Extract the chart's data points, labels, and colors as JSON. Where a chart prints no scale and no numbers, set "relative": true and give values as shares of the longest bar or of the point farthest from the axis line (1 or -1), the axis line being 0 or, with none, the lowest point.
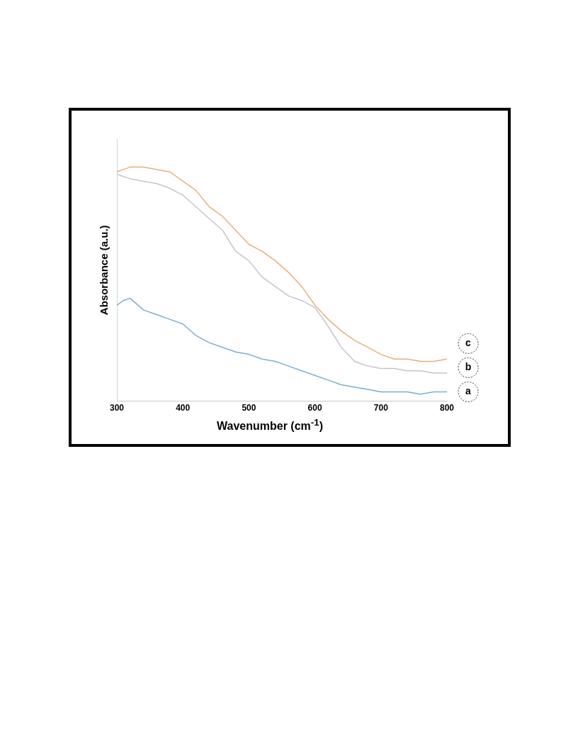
{
  "chart_data": {
    "type": "line",
    "xlabel": "Wavenumber (cm$^{-1}$)",
    "ylabel": "Absorbance (a.u.)",
    "relative": true,
    "xlim": [
      300,
      800
    ],
    "xticks": [
      300,
      400,
      500,
      600,
      700,
      800
    ],
    "grid": false,
    "legend": false,
    "marker": "none",
    "line_style": "solid",
    "x": [
      300,
      310,
      320,
      340,
      360,
      380,
      400,
      420,
      440,
      460,
      480,
      500,
      520,
      540,
      560,
      580,
      600,
      620,
      640,
      660,
      680,
      700,
      720,
      740,
      760,
      780,
      800
    ],
    "series": [
      {
        "name": "a",
        "color": "#7aaed0",
        "values": [
          0.41,
          0.43,
          0.44,
          0.39,
          0.37,
          0.35,
          0.33,
          0.28,
          0.25,
          0.23,
          0.21,
          0.2,
          0.18,
          0.17,
          0.15,
          0.13,
          0.11,
          0.09,
          0.07,
          0.06,
          0.05,
          0.04,
          0.04,
          0.04,
          0.03,
          0.04,
          0.04
        ]
      },
      {
        "name": "b",
        "color": "#c4c4cc",
        "values": [
          0.97,
          0.96,
          0.95,
          0.94,
          0.93,
          0.91,
          0.88,
          0.83,
          0.78,
          0.73,
          0.64,
          0.6,
          0.53,
          0.49,
          0.45,
          0.43,
          0.4,
          0.32,
          0.23,
          0.17,
          0.15,
          0.14,
          0.14,
          0.13,
          0.13,
          0.12,
          0.12
        ]
      },
      {
        "name": "c",
        "color": "#e8b07a",
        "values": [
          0.98,
          0.99,
          1.0,
          1.0,
          0.99,
          0.98,
          0.94,
          0.9,
          0.83,
          0.79,
          0.73,
          0.67,
          0.64,
          0.6,
          0.55,
          0.49,
          0.41,
          0.35,
          0.3,
          0.26,
          0.23,
          0.2,
          0.18,
          0.18,
          0.17,
          0.17,
          0.18
        ]
      }
    ]
  }
}
